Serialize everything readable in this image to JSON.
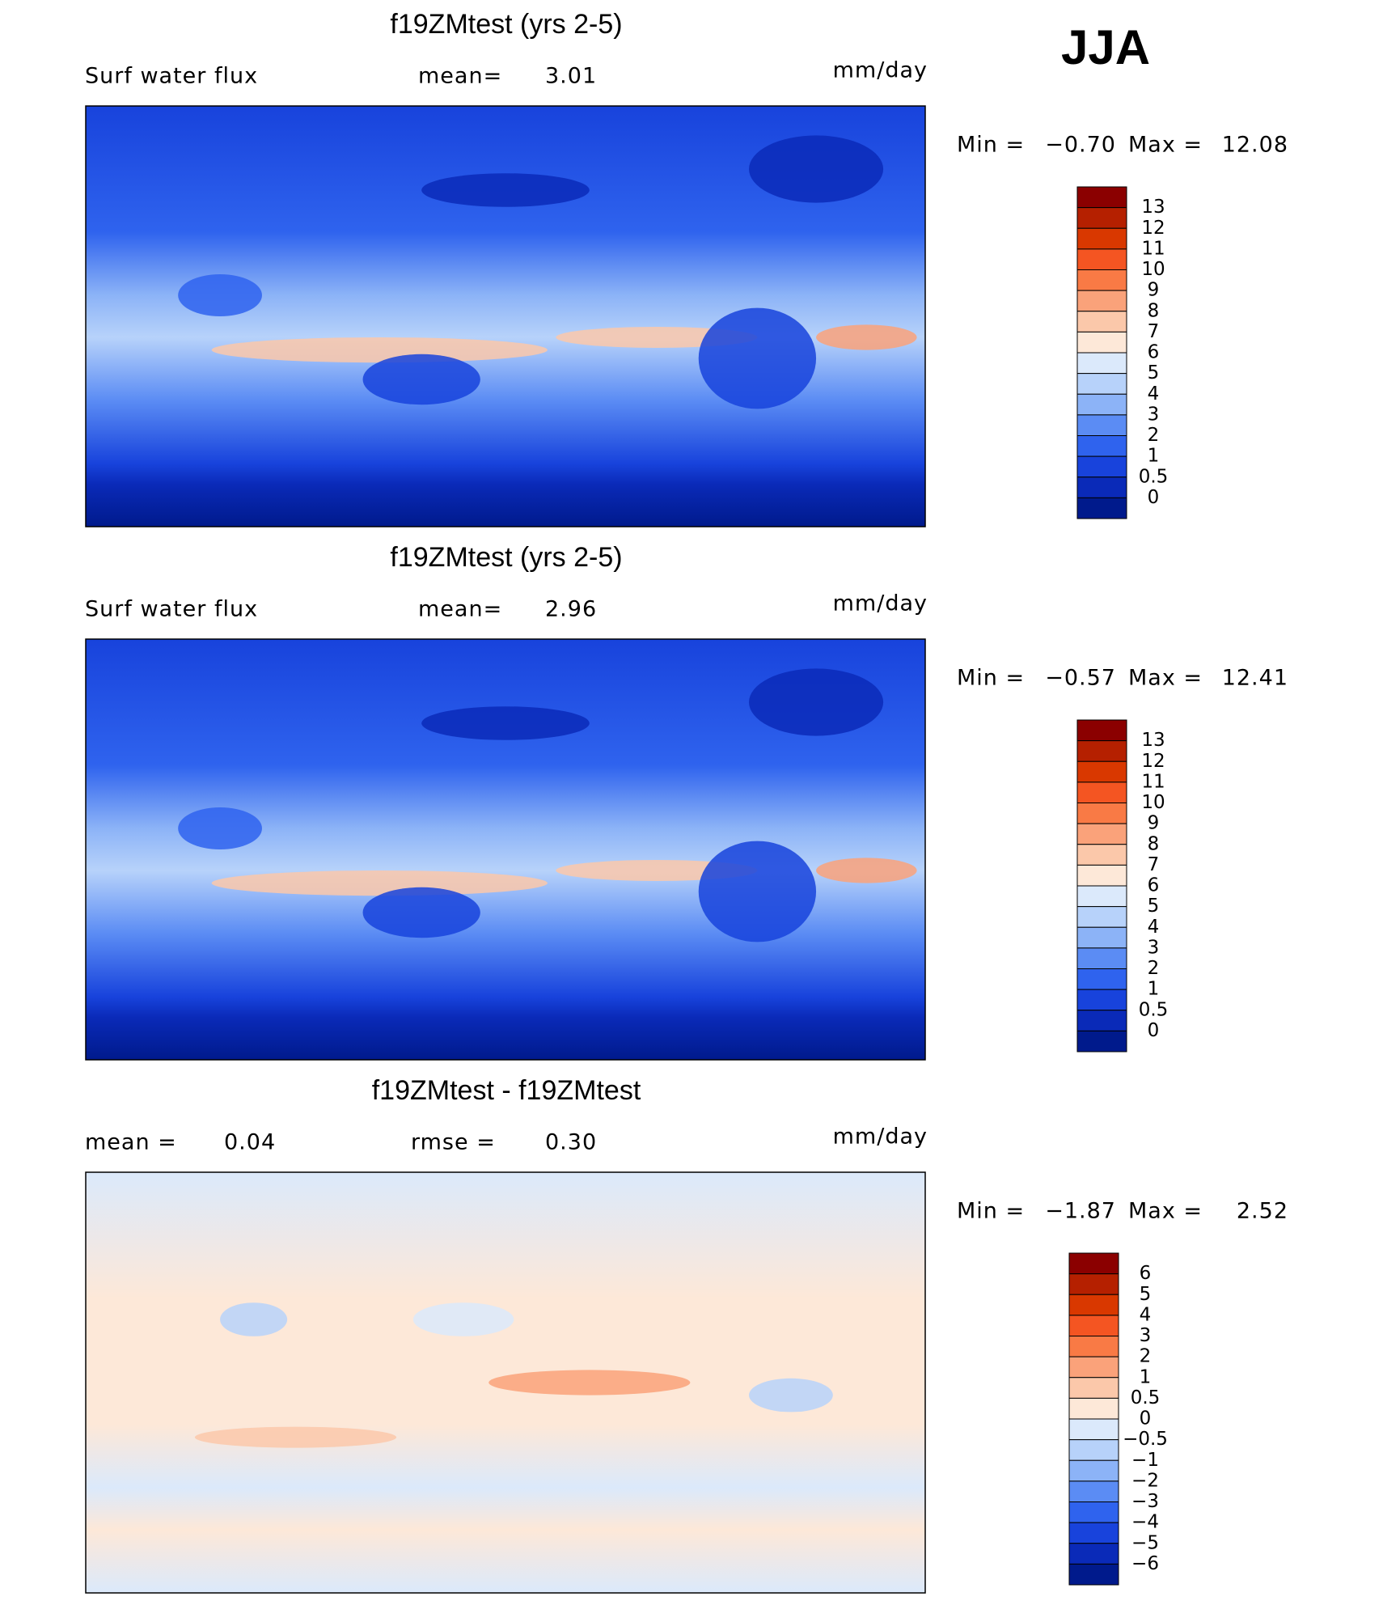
{
  "season": "JJA",
  "panels": [
    {
      "title": "f19ZMtest (yrs 2-5)",
      "subtitle": [
        "Surf water flux",
        "mean=",
        "3.01"
      ],
      "units": "mm/day",
      "min_label": "Min =",
      "min": "−0.70",
      "max_label": "Max =",
      "max": "12.08",
      "map": "mean",
      "colorbar": {
        "labels": [
          "13",
          "12",
          "11",
          "10",
          "9",
          "8",
          "7",
          "6",
          "5",
          "4",
          "3",
          "2",
          "1",
          "0.5",
          "0"
        ],
        "colors": [
          "#8b0000",
          "#b52000",
          "#d93800",
          "#f45522",
          "#f97a45",
          "#faa27a",
          "#fbc8aa",
          "#fde8d8",
          "#dbe9fb",
          "#b7d2fa",
          "#8cb3f7",
          "#5b8cf4",
          "#2f63ee",
          "#1843dc",
          "#0a2ab8",
          "#001a8c"
        ]
      }
    },
    {
      "title": "f19ZMtest (yrs 2-5)",
      "subtitle": [
        "Surf water flux",
        "mean=",
        "2.96"
      ],
      "units": "mm/day",
      "min_label": "Min =",
      "min": "−0.57",
      "max_label": "Max =",
      "max": "12.41",
      "map": "mean",
      "colorbar": {
        "labels": [
          "13",
          "12",
          "11",
          "10",
          "9",
          "8",
          "7",
          "6",
          "5",
          "4",
          "3",
          "2",
          "1",
          "0.5",
          "0"
        ],
        "colors": [
          "#8b0000",
          "#b52000",
          "#d93800",
          "#f45522",
          "#f97a45",
          "#faa27a",
          "#fbc8aa",
          "#fde8d8",
          "#dbe9fb",
          "#b7d2fa",
          "#8cb3f7",
          "#5b8cf4",
          "#2f63ee",
          "#1843dc",
          "#0a2ab8",
          "#001a8c"
        ]
      }
    },
    {
      "title": "f19ZMtest - f19ZMtest",
      "subtitle": [
        "mean =",
        "0.04",
        "rmse =",
        "0.30"
      ],
      "units": "mm/day",
      "min_label": "Min =",
      "min": "−1.87",
      "max_label": "Max =",
      "max": "2.52",
      "map": "diff",
      "colorbar": {
        "labels": [
          "6",
          "5",
          "4",
          "3",
          "2",
          "1",
          "0.5",
          "0",
          "−0.5",
          "−1",
          "−2",
          "−3",
          "−4",
          "−5",
          "−6"
        ],
        "colors": [
          "#8b0000",
          "#b52000",
          "#d93800",
          "#f45522",
          "#f97a45",
          "#faa27a",
          "#fbc8aa",
          "#fde8d8",
          "#dbe9fb",
          "#b7d2fa",
          "#8cb3f7",
          "#5b8cf4",
          "#2f63ee",
          "#1843dc",
          "#0a2ab8",
          "#001a8c"
        ]
      }
    }
  ]
}
